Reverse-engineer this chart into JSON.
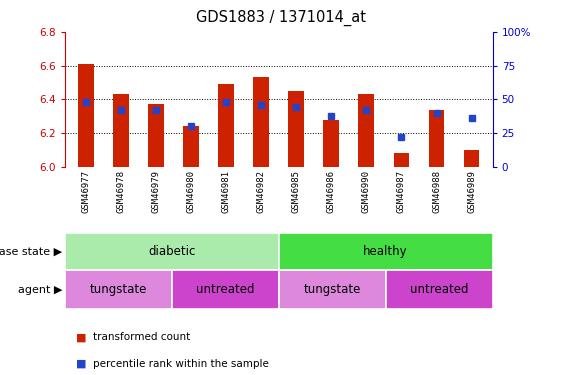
{
  "title": "GDS1883 / 1371014_at",
  "samples": [
    "GSM46977",
    "GSM46978",
    "GSM46979",
    "GSM46980",
    "GSM46981",
    "GSM46982",
    "GSM46985",
    "GSM46986",
    "GSM46990",
    "GSM46987",
    "GSM46988",
    "GSM46989"
  ],
  "bar_values": [
    6.61,
    6.43,
    6.37,
    6.24,
    6.49,
    6.53,
    6.45,
    6.28,
    6.43,
    6.08,
    6.34,
    6.1
  ],
  "percentile_values": [
    48,
    42,
    42,
    30,
    48,
    46,
    44,
    38,
    42,
    22,
    40,
    36
  ],
  "ylim_left": [
    6.0,
    6.8
  ],
  "ylim_right": [
    0,
    100
  ],
  "yticks_left": [
    6.0,
    6.2,
    6.4,
    6.6,
    6.8
  ],
  "yticks_right": [
    0,
    25,
    50,
    75,
    100
  ],
  "bar_color": "#cc2200",
  "dot_color": "#2244cc",
  "background_color": "#ffffff",
  "xticklabel_bg": "#d8d8d8",
  "disease_state_groups": [
    {
      "label": "diabetic",
      "start": 0,
      "end": 6,
      "color": "#aaeaaa"
    },
    {
      "label": "healthy",
      "start": 6,
      "end": 12,
      "color": "#44dd44"
    }
  ],
  "agent_groups": [
    {
      "label": "tungstate",
      "start": 0,
      "end": 3,
      "color": "#dd88dd"
    },
    {
      "label": "untreated",
      "start": 3,
      "end": 6,
      "color": "#cc44cc"
    },
    {
      "label": "tungstate",
      "start": 6,
      "end": 9,
      "color": "#dd88dd"
    },
    {
      "label": "untreated",
      "start": 9,
      "end": 12,
      "color": "#cc44cc"
    }
  ],
  "legend_items": [
    {
      "label": "transformed count",
      "color": "#cc2200"
    },
    {
      "label": "percentile rank within the sample",
      "color": "#2244cc"
    }
  ],
  "label_disease_state": "disease state",
  "label_agent": "agent",
  "bar_width": 0.45,
  "grid_yticks": [
    6.2,
    6.4,
    6.6
  ]
}
